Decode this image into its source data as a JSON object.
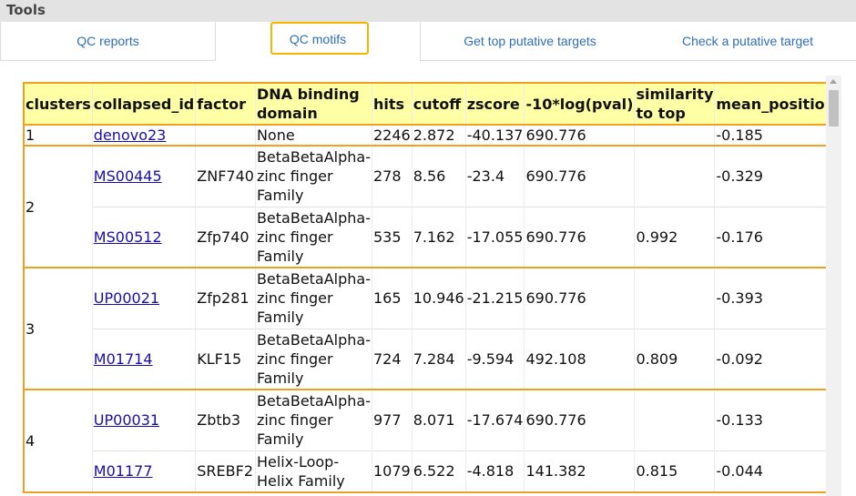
{
  "titlebar": {
    "title": "Tools"
  },
  "tabs": [
    {
      "label": "QC reports"
    },
    {
      "label": "QC motifs"
    },
    {
      "label": "Get top putative targets"
    },
    {
      "label": "Check a putative target"
    }
  ],
  "table": {
    "headers": [
      "clusters",
      "collapsed_id",
      "factor",
      "DNA binding domain",
      "hits",
      "cutoff",
      "zscore",
      "-10*log(pval)",
      "similarity to top",
      "mean_position"
    ],
    "clusters": [
      "1",
      "2",
      "3",
      "4"
    ],
    "rows": [
      {
        "collapsed_id": "denovo23",
        "factor": "",
        "domain": "None",
        "hits": "2246",
        "cutoff": "2.872",
        "zscore": "-40.137",
        "pval": "690.776",
        "similarity": "",
        "mean_position": "-0.185"
      },
      {
        "collapsed_id": "MS00445",
        "factor": "ZNF740",
        "domain": "BetaBetaAlpha-zinc finger Family",
        "hits": "278",
        "cutoff": "8.56",
        "zscore": "-23.4",
        "pval": "690.776",
        "similarity": "",
        "mean_position": "-0.329"
      },
      {
        "collapsed_id": "MS00512",
        "factor": "Zfp740",
        "domain": "BetaBetaAlpha-zinc finger Family",
        "hits": "535",
        "cutoff": "7.162",
        "zscore": "-17.055",
        "pval": "690.776",
        "similarity": "0.992",
        "mean_position": "-0.176"
      },
      {
        "collapsed_id": "UP00021",
        "factor": "Zfp281",
        "domain": "BetaBetaAlpha-zinc finger Family",
        "hits": "165",
        "cutoff": "10.946",
        "zscore": "-21.215",
        "pval": "690.776",
        "similarity": "",
        "mean_position": "-0.393"
      },
      {
        "collapsed_id": "M01714",
        "factor": "KLF15",
        "domain": "BetaBetaAlpha-zinc finger Family",
        "hits": "724",
        "cutoff": "7.284",
        "zscore": "-9.594",
        "pval": "492.108",
        "similarity": "0.809",
        "mean_position": "-0.092"
      },
      {
        "collapsed_id": "UP00031",
        "factor": "Zbtb3",
        "domain": "BetaBetaAlpha-zinc finger Family",
        "hits": "977",
        "cutoff": "8.071",
        "zscore": "-17.674",
        "pval": "690.776",
        "similarity": "",
        "mean_position": "-0.133"
      },
      {
        "collapsed_id": "M01177",
        "factor": "SREBF2",
        "domain": "Helix-Loop-Helix Family",
        "hits": "1079",
        "cutoff": "6.522",
        "zscore": "-4.818",
        "pval": "141.382",
        "similarity": "0.815",
        "mean_position": "-0.044"
      }
    ]
  },
  "colors": {
    "tab_focus": "#f5b400",
    "table_border": "#f0a020",
    "header_bg": "#ffffa6",
    "link": "#1a0dab",
    "tab_text": "#2f6db5"
  }
}
